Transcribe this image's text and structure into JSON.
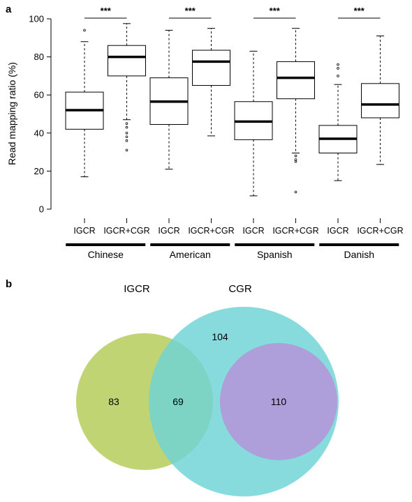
{
  "panel_a": {
    "letter": "a"
  },
  "panel_b": {
    "letter": "b"
  },
  "chart_data": [
    {
      "type": "boxplot",
      "ylabel": "Read mapping ratio (%)",
      "ylim": [
        0,
        100
      ],
      "yticks": [
        0,
        20,
        40,
        60,
        80,
        100
      ],
      "categories": [
        "IGCR",
        "IGCR+CGR",
        "IGCR",
        "IGCR+CGR",
        "IGCR",
        "IGCR+CGR",
        "IGCR",
        "IGCR+CGR"
      ],
      "groups": [
        {
          "name": "Chinese",
          "significance": "***"
        },
        {
          "name": "American",
          "significance": "***"
        },
        {
          "name": "Spanish",
          "significance": "***"
        },
        {
          "name": "Danish",
          "significance": "***"
        }
      ],
      "boxes": [
        {
          "min": 17,
          "q1": 42,
          "median": 52,
          "q3": 61.5,
          "max": 88,
          "outliers": [
            94
          ]
        },
        {
          "min": 47,
          "q1": 70,
          "median": 80,
          "q3": 86,
          "max": 97.5,
          "outliers": [
            45,
            43,
            40,
            38,
            36,
            31
          ]
        },
        {
          "min": 21,
          "q1": 44.5,
          "median": 56.5,
          "q3": 69,
          "max": 94,
          "outliers": []
        },
        {
          "min": 38.5,
          "q1": 65,
          "median": 77.5,
          "q3": 83.5,
          "max": 95,
          "outliers": []
        },
        {
          "min": 7,
          "q1": 36.5,
          "median": 46,
          "q3": 56.5,
          "max": 83,
          "outliers": []
        },
        {
          "min": 29.5,
          "q1": 58,
          "median": 69,
          "q3": 77.5,
          "max": 95,
          "outliers": [
            28,
            26,
            25,
            9
          ]
        },
        {
          "min": 15,
          "q1": 29.5,
          "median": 37,
          "q3": 44,
          "max": 65.5,
          "outliers": [
            76,
            74,
            70
          ]
        },
        {
          "min": 23.5,
          "q1": 48,
          "median": 55,
          "q3": 66,
          "max": 91,
          "outliers": []
        }
      ]
    },
    {
      "type": "venn",
      "sets": [
        {
          "name": "IGCR",
          "color": "#b5cc5c"
        },
        {
          "name": "CGR",
          "color": "#6ed3d6"
        },
        {
          "name": "",
          "color": "#b09bd8"
        }
      ],
      "regions": [
        {
          "id": "igcr_only",
          "value": "83"
        },
        {
          "id": "igcr_cgr",
          "value": "69"
        },
        {
          "id": "cgr_only",
          "value": "104"
        },
        {
          "id": "inner",
          "value": "110"
        }
      ]
    }
  ]
}
